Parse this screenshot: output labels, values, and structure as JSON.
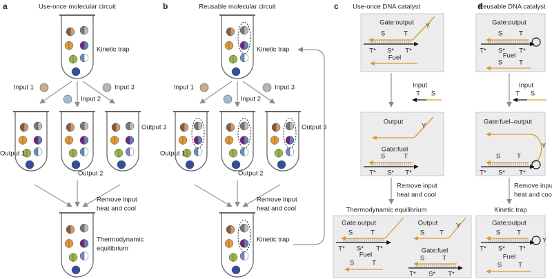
{
  "a": {
    "letter": "a",
    "title": "Use-once molecular circuit",
    "trap": "Kinetic trap",
    "inputs": [
      "Input 1",
      "Input 2",
      "Input 3"
    ],
    "outputs": [
      "Output 1",
      "Output 2",
      "Output 3"
    ],
    "step": [
      "Remove input",
      "heat and cool"
    ],
    "final": [
      "Thermodynamic",
      "equilibrium"
    ]
  },
  "b": {
    "letter": "b",
    "title": "Reusable molecular circuit",
    "trap": "Kinetic trap",
    "inputs": [
      "Input 1",
      "Input 2",
      "Input 3"
    ],
    "outputs": [
      "Output 1",
      "Output 2",
      "Output 3"
    ],
    "step": [
      "Remove input",
      "heat and cool"
    ],
    "final": [
      "Kinetic trap"
    ]
  },
  "c": {
    "letter": "c",
    "title": "Use-once DNA catalyst",
    "box1": {
      "gate": "Gate:output",
      "y": "Y",
      "top": [
        "S",
        "T"
      ],
      "bottom": [
        "T*",
        "S*",
        "T*"
      ],
      "fuel": "Fuel"
    },
    "input": {
      "label": "Input",
      "domains": [
        "T",
        "S"
      ]
    },
    "box2": {
      "output": "Output",
      "y": "Y",
      "gate": "Gate:fuel",
      "top": [
        "S",
        "T"
      ],
      "bottom": [
        "T*",
        "S*",
        "T*"
      ]
    },
    "step": [
      "Remove input",
      "heat and cool"
    ],
    "state": "Thermodynamic equilibrium",
    "box3": {
      "gate_output": {
        "label": "Gate:output",
        "top": [
          "S",
          "T"
        ],
        "bottom": [
          "T*",
          "S*",
          "T*"
        ]
      },
      "output": {
        "label": "Output",
        "domains": [
          "S",
          "T"
        ],
        "y": "Y"
      },
      "fuel": {
        "label": "Fuel",
        "domains": [
          "S",
          "T"
        ]
      },
      "gate_fuel": {
        "label": "Gate:fuel",
        "top": [
          "S",
          "T"
        ],
        "bottom": [
          "T*",
          "S*",
          "T*"
        ]
      }
    }
  },
  "d": {
    "letter": "d",
    "title": "Reusable DNA catalyst",
    "box1": {
      "gate": "Gate:output",
      "top": [
        "S",
        "T"
      ],
      "bottom": [
        "T*",
        "S*",
        "T*"
      ],
      "fuel": "Fuel",
      "fuel_domains": [
        "S",
        "T"
      ]
    },
    "input": {
      "label": "Input",
      "domains": [
        "T",
        "S"
      ]
    },
    "box2": {
      "gate": "Gate:fuel–output",
      "y": "Y",
      "top": [
        "S",
        "T"
      ],
      "bottom": [
        "T*",
        "S*",
        "T*"
      ]
    },
    "step": [
      "Remove input",
      "heat and cool"
    ],
    "state": "Kinetic trap",
    "box3": {
      "gate": "Gate:output",
      "y": "Y",
      "top": [
        "S",
        "T"
      ],
      "bottom": [
        "T*",
        "S*",
        "T*"
      ],
      "fuel": "Fuel",
      "fuel_domains": [
        "S",
        "T"
      ]
    }
  }
}
